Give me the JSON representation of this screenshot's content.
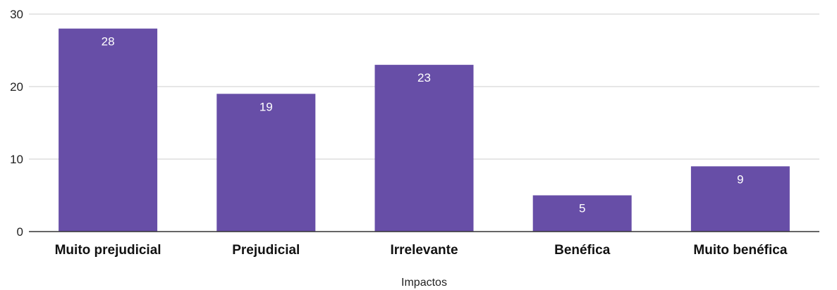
{
  "chart_data": {
    "type": "bar",
    "title": "",
    "xlabel": "Impactos",
    "ylabel": "",
    "categories": [
      "Muito prejudicial",
      "Prejudicial",
      "Irrelevante",
      "Benéfica",
      "Muito benéfica"
    ],
    "values": [
      28,
      19,
      23,
      5,
      9
    ],
    "data_labels": [
      "28",
      "19",
      "23",
      "5",
      "9"
    ],
    "ylim": [
      0,
      30
    ],
    "yticks": [
      0,
      10,
      20,
      30
    ],
    "ytick_labels": [
      "0",
      "10",
      "20",
      "30"
    ],
    "grid": true,
    "legend": "none",
    "colors": {
      "bar": "#674ea7",
      "grid": "#cccccc",
      "axis": "#333333",
      "data_label": "#ffffff"
    }
  }
}
